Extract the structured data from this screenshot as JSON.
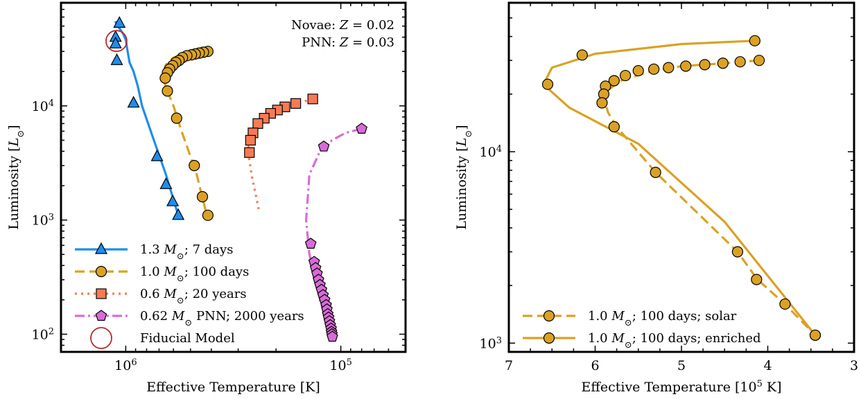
{
  "chart_data": [
    {
      "type": "line",
      "panel": "left",
      "xlabel": "Effective Temperature [K]",
      "ylabel": "Luminosity [L⊙]",
      "xscale": "log",
      "yscale": "log",
      "x_inverted": true,
      "xlim": [
        2000000,
        50000
      ],
      "ylim": [
        70,
        80000
      ],
      "x_ticks": [
        {
          "value": 1000000,
          "label": "10⁶"
        },
        {
          "value": 100000,
          "label": "10⁵"
        }
      ],
      "y_ticks": [
        {
          "value": 100,
          "label": "10²"
        },
        {
          "value": 1000,
          "label": "10³"
        },
        {
          "value": 10000,
          "label": "10⁴"
        }
      ],
      "annotation_lines": [
        "Novae: Z = 0.02",
        "PNN: Z = 0.03"
      ],
      "legend_position": "lower-left",
      "series": [
        {
          "name": "1.3 M⊙; 7 days",
          "color": "#1f8ded",
          "marker": "triangle",
          "dash": "solid",
          "line": [
            [
              1120000,
              55000
            ],
            [
              1080000,
              49000
            ],
            [
              1030000,
              43000
            ],
            [
              1000000,
              38000
            ],
            [
              980000,
              30000
            ],
            [
              960000,
              24000
            ],
            [
              920000,
              20000
            ],
            [
              880000,
              15000
            ],
            [
              840000,
              10000
            ],
            [
              740000,
              5000
            ],
            [
              650000,
              2500
            ],
            [
              570000,
              1100
            ]
          ],
          "points": [
            [
              1070000,
              53000
            ],
            [
              1115000,
              40000
            ],
            [
              1115000,
              35000
            ],
            [
              1100000,
              25000
            ],
            [
              920000,
              10600
            ],
            [
              715000,
              3600
            ],
            [
              650000,
              2050
            ],
            [
              605000,
              1450
            ],
            [
              570000,
              1100
            ]
          ]
        },
        {
          "name": "1.0 M⊙; 100 days",
          "color": "#dba124",
          "marker": "circle",
          "dash": "dashed",
          "line": [
            [
              415000,
              30000
            ],
            [
              450000,
              29500
            ],
            [
              520000,
              28500
            ],
            [
              600000,
              26500
            ],
            [
              650000,
              23000
            ],
            [
              670000,
              19500
            ],
            [
              665000,
              16500
            ],
            [
              640000,
              13500
            ],
            [
              600000,
              10000
            ],
            [
              550000,
              6000
            ],
            [
              470000,
              2600
            ],
            [
              420000,
              1100
            ]
          ],
          "points": [
            [
              415000,
              30000
            ],
            [
              435000,
              29500
            ],
            [
              455000,
              29000
            ],
            [
              475000,
              28500
            ],
            [
              495000,
              28000
            ],
            [
              520000,
              27500
            ],
            [
              545000,
              26500
            ],
            [
              565000,
              25000
            ],
            [
              585000,
              24000
            ],
            [
              605000,
              22500
            ],
            [
              625000,
              21000
            ],
            [
              640000,
              19500
            ],
            [
              655000,
              17500
            ],
            [
              640000,
              13500
            ],
            [
              580000,
              7800
            ],
            [
              480000,
              3000
            ],
            [
              440000,
              1600
            ],
            [
              415000,
              1100
            ]
          ]
        },
        {
          "name": "0.6 M⊙; 20 years",
          "color": "#f87a55",
          "marker": "square",
          "dash": "dotted",
          "line": [
            [
              135000,
              11500
            ],
            [
              160000,
              10500
            ],
            [
              190000,
              9800
            ],
            [
              220000,
              8500
            ],
            [
              250000,
              7000
            ],
            [
              265000,
              5800
            ],
            [
              270000,
              4000
            ],
            [
              260000,
              2500
            ],
            [
              240000,
              1200
            ]
          ],
          "points": [
            [
              135000,
              11500
            ],
            [
              162000,
              10500
            ],
            [
              182000,
              9800
            ],
            [
              197000,
              9200
            ],
            [
              212000,
              8600
            ],
            [
              227000,
              7800
            ],
            [
              243000,
              7000
            ],
            [
              256000,
              5800
            ],
            [
              263000,
              5000
            ],
            [
              266000,
              3900
            ]
          ]
        },
        {
          "name": "0.62 M⊙ PNN; 2000 years",
          "color": "#d96bd7",
          "marker": "pentagon",
          "dash": "dashdot",
          "line": [
            [
              80000,
              6300
            ],
            [
              95000,
              5800
            ],
            [
              110000,
              5000
            ],
            [
              125000,
              4000
            ],
            [
              140000,
              2500
            ],
            [
              145000,
              1000
            ],
            [
              140000,
              500
            ],
            [
              130000,
              300
            ],
            [
              125000,
              200
            ],
            [
              115000,
              120
            ],
            [
              110000,
              95
            ]
          ],
          "points": [
            [
              80000,
              6300
            ],
            [
              120000,
              4400
            ],
            [
              138000,
              620
            ],
            [
              133000,
              430
            ],
            [
              131000,
              380
            ],
            [
              129000,
              340
            ],
            [
              127000,
              300
            ],
            [
              125000,
              270
            ],
            [
              123000,
              245
            ],
            [
              121000,
              220
            ],
            [
              119000,
              200
            ],
            [
              117000,
              180
            ],
            [
              116000,
              165
            ],
            [
              115000,
              150
            ],
            [
              114000,
              140
            ],
            [
              113000,
              130
            ],
            [
              112000,
              120
            ],
            [
              111000,
              112
            ],
            [
              110500,
              105
            ],
            [
              110000,
              100
            ],
            [
              109500,
              95
            ]
          ]
        }
      ],
      "legend_extra": {
        "name": "Fiducial Model",
        "color": "#b52b2b",
        "marker": "open-circle",
        "point": [
          1105000,
          37000
        ]
      }
    },
    {
      "type": "line",
      "panel": "right",
      "xlabel": "Effective Temperature [10⁵ K]",
      "ylabel": "Luminosity [L⊙]",
      "xscale": "linear",
      "yscale": "log",
      "x_inverted": true,
      "xlim": [
        7,
        3
      ],
      "ylim": [
        900,
        60000
      ],
      "x_ticks": [
        {
          "value": 7,
          "label": "7"
        },
        {
          "value": 6,
          "label": "6"
        },
        {
          "value": 5,
          "label": "5"
        },
        {
          "value": 4,
          "label": "4"
        },
        {
          "value": 3,
          "label": "3"
        }
      ],
      "y_ticks": [
        {
          "value": 1000,
          "label": "10³"
        },
        {
          "value": 10000,
          "label": "10⁴"
        }
      ],
      "legend_position": "lower-left",
      "series": [
        {
          "name": "1.0 M⊙; 100 days; solar",
          "color": "#dba124",
          "marker": "circle",
          "dash": "dashed",
          "line": [
            [
              4.1,
              30000
            ],
            [
              4.5,
              29000
            ],
            [
              5.0,
              28000
            ],
            [
              5.4,
              26000
            ],
            [
              5.7,
              23500
            ],
            [
              5.85,
              21000
            ],
            [
              5.9,
              19000
            ],
            [
              5.85,
              16000
            ],
            [
              5.75,
              13500
            ],
            [
              5.3,
              7800
            ],
            [
              4.35,
              3000
            ],
            [
              4.12,
              2150
            ],
            [
              3.8,
              1600
            ],
            [
              3.45,
              1100
            ]
          ],
          "points": [
            [
              4.1,
              30000
            ],
            [
              4.32,
              29500
            ],
            [
              4.52,
              29000
            ],
            [
              4.73,
              28500
            ],
            [
              4.95,
              28000
            ],
            [
              5.15,
              27500
            ],
            [
              5.32,
              27000
            ],
            [
              5.5,
              26500
            ],
            [
              5.65,
              25000
            ],
            [
              5.78,
              23500
            ],
            [
              5.88,
              22000
            ],
            [
              5.9,
              20000
            ],
            [
              5.92,
              18000
            ],
            [
              5.78,
              13500
            ],
            [
              5.3,
              7800
            ],
            [
              4.35,
              3000
            ],
            [
              4.13,
              2150
            ],
            [
              3.8,
              1600
            ],
            [
              3.45,
              1100
            ]
          ]
        },
        {
          "name": "1.0 M⊙; 100 days; enriched",
          "color": "#dba124",
          "marker": "circle",
          "dash": "solid",
          "line": [
            [
              4.15,
              38000
            ],
            [
              5.0,
              36500
            ],
            [
              6.0,
              32500
            ],
            [
              6.5,
              27500
            ],
            [
              6.6,
              22500
            ],
            [
              6.3,
              17000
            ],
            [
              5.5,
              11000
            ],
            [
              4.5,
              4300
            ],
            [
              3.45,
              1100
            ]
          ],
          "points": [
            [
              4.15,
              38000
            ],
            [
              6.15,
              32000
            ],
            [
              6.55,
              22500
            ],
            [
              3.45,
              1100
            ]
          ]
        }
      ]
    }
  ]
}
